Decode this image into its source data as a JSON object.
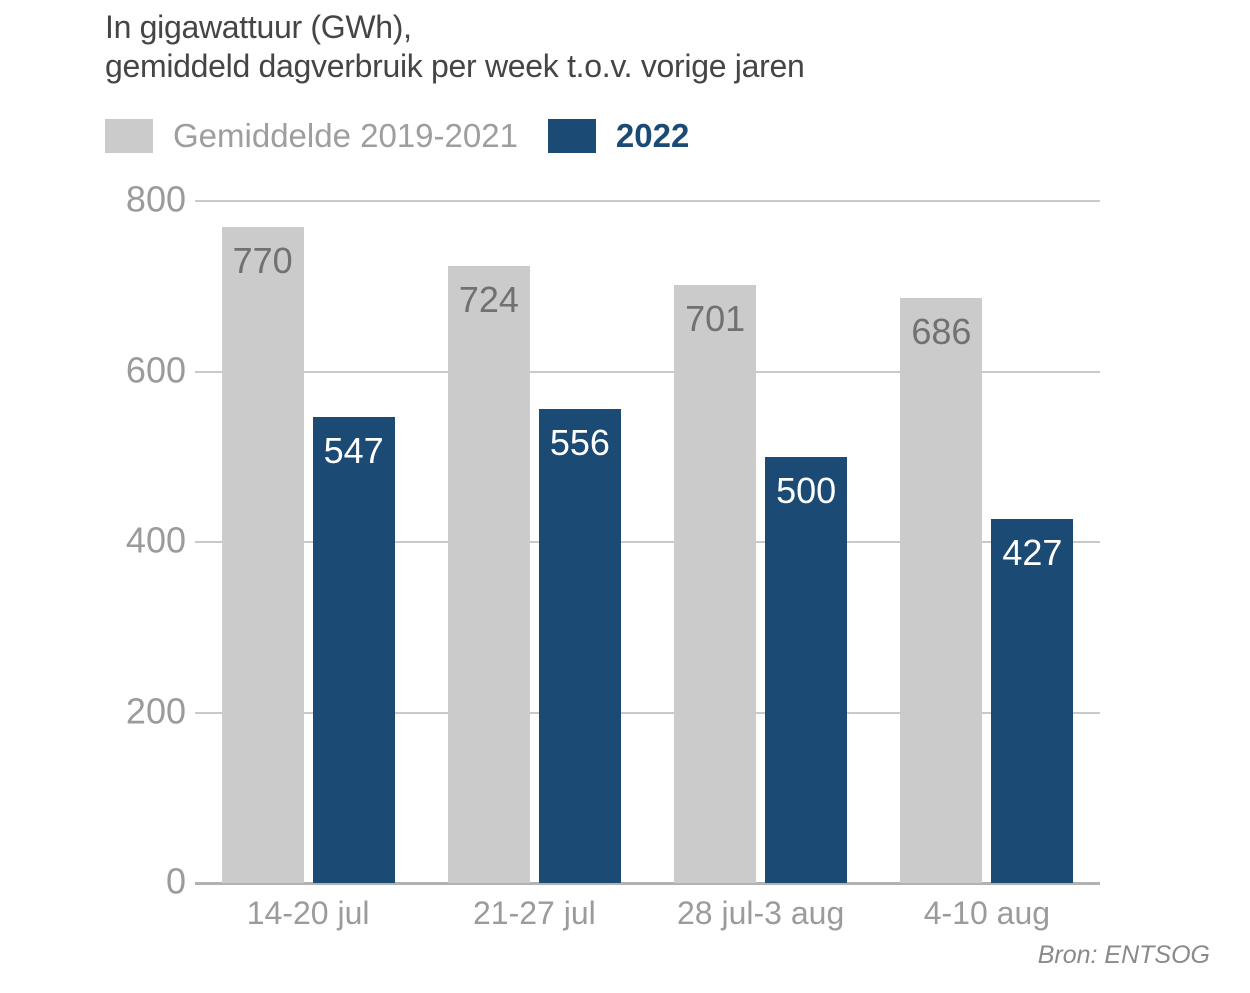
{
  "title": {
    "line1": "In gigawattuur (GWh),",
    "line2": "gemiddeld dagverbruik per week t.o.v. vorige jaren"
  },
  "legend": {
    "items": [
      {
        "label": "Gemiddelde 2019-2021",
        "swatch_color": "#cbcbcb",
        "text_color": "#9e9e9e",
        "bold": false
      },
      {
        "label": "2022",
        "swatch_color": "#1b4a75",
        "text_color": "#1b4a75",
        "bold": true
      }
    ]
  },
  "source": "Bron: ENTSOG",
  "chart_data": {
    "type": "bar",
    "title": "In gigawattuur (GWh), gemiddeld dagverbruik per week t.o.v. vorige jaren",
    "categories": [
      "14-20 jul",
      "21-27 jul",
      "28 jul-3 aug",
      "4-10 aug"
    ],
    "series": [
      {
        "name": "Gemiddelde 2019-2021",
        "values": [
          770,
          724,
          701,
          686
        ],
        "color": "#cbcbcb",
        "label_color": "#717171"
      },
      {
        "name": "2022",
        "values": [
          547,
          556,
          500,
          427
        ],
        "color": "#1b4a75",
        "label_color": "#ffffff"
      }
    ],
    "xlabel": "",
    "ylabel": "",
    "ylim": [
      0,
      800
    ],
    "yticks": [
      800,
      600,
      400,
      200,
      0
    ],
    "grid": true,
    "legend_position": "top-left",
    "value_labels": "inside-top",
    "source": "Bron: ENTSOG"
  },
  "colors": {
    "background": "#ffffff",
    "title_text": "#454545",
    "axis_text": "#9b9b9b",
    "gridline": "#c9c9c9",
    "baseline": "#b2b2b2"
  }
}
